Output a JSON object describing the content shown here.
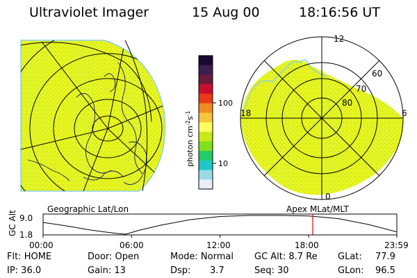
{
  "header": {
    "instrument": "Ultraviolet Imager",
    "date": "15 Aug 00",
    "time": "18:16:56 UT"
  },
  "left_map": {
    "label": "Geographic Lat/Lon"
  },
  "right_map": {
    "label": "Apex MLat/MLT",
    "mlt_labels": {
      "top": "12",
      "bottom": "0",
      "left": "18",
      "right": "6"
    },
    "lat_labels": [
      "60",
      "70",
      "80"
    ]
  },
  "colorbar": {
    "unit": "photon cm",
    "unit_exp1": "-2",
    "unit_mid": "s",
    "unit_exp2": "-1",
    "ticks": [
      "100",
      "10"
    ],
    "colors": [
      "#1a0a33",
      "#3c1f4f",
      "#6b1c3a",
      "#c8102e",
      "#e8391a",
      "#f28b1e",
      "#f5c53a",
      "#ffff60",
      "#c8e818",
      "#7ee01e",
      "#22cc66",
      "#1ec8c8",
      "#9adbe8",
      "#e8eef5"
    ]
  },
  "orbit_plot": {
    "ylabel": "GC Alt",
    "y_ticks": [
      "9.0",
      "1.8"
    ],
    "x_ticks": [
      "00:00",
      "06:00",
      "12:00",
      "18:00",
      "23:59"
    ],
    "current_time_hours": 18.28,
    "orbit": [
      {
        "t": 0.0,
        "alt": 6.3
      },
      {
        "t": 1.0,
        "alt": 5.5
      },
      {
        "t": 2.0,
        "alt": 4.6
      },
      {
        "t": 3.0,
        "alt": 3.6
      },
      {
        "t": 4.0,
        "alt": 2.8
      },
      {
        "t": 5.0,
        "alt": 2.1
      },
      {
        "t": 5.6,
        "alt": 1.8
      },
      {
        "t": 6.5,
        "alt": 3.3
      },
      {
        "t": 8.0,
        "alt": 5.3
      },
      {
        "t": 10.0,
        "alt": 7.4
      },
      {
        "t": 12.0,
        "alt": 8.6
      },
      {
        "t": 14.0,
        "alt": 9.0
      },
      {
        "t": 16.0,
        "alt": 9.0
      },
      {
        "t": 18.0,
        "alt": 8.8
      },
      {
        "t": 20.0,
        "alt": 7.8
      },
      {
        "t": 22.0,
        "alt": 5.6
      },
      {
        "t": 23.98,
        "alt": 2.7
      }
    ]
  },
  "status": {
    "row1": {
      "flt": "Flt: HOME",
      "door": "Door: Open",
      "mode": "Mode: Normal",
      "gc_alt": "GC Alt: 8.7 Re",
      "glat_label": "GLat:",
      "glat_value": "77.9"
    },
    "row2": {
      "ip": "IP: 36.0",
      "gain": "Gain: 13",
      "dsp_label": "Dsp:",
      "dsp_value": "3.7",
      "seq": "Seq: 30",
      "glon_label": "GLon:",
      "glon_value": "96.5"
    }
  },
  "colors": {
    "image_fill": "#e8f520",
    "image_speckle": "#9fd83a",
    "limb": "#8fd0e8"
  }
}
